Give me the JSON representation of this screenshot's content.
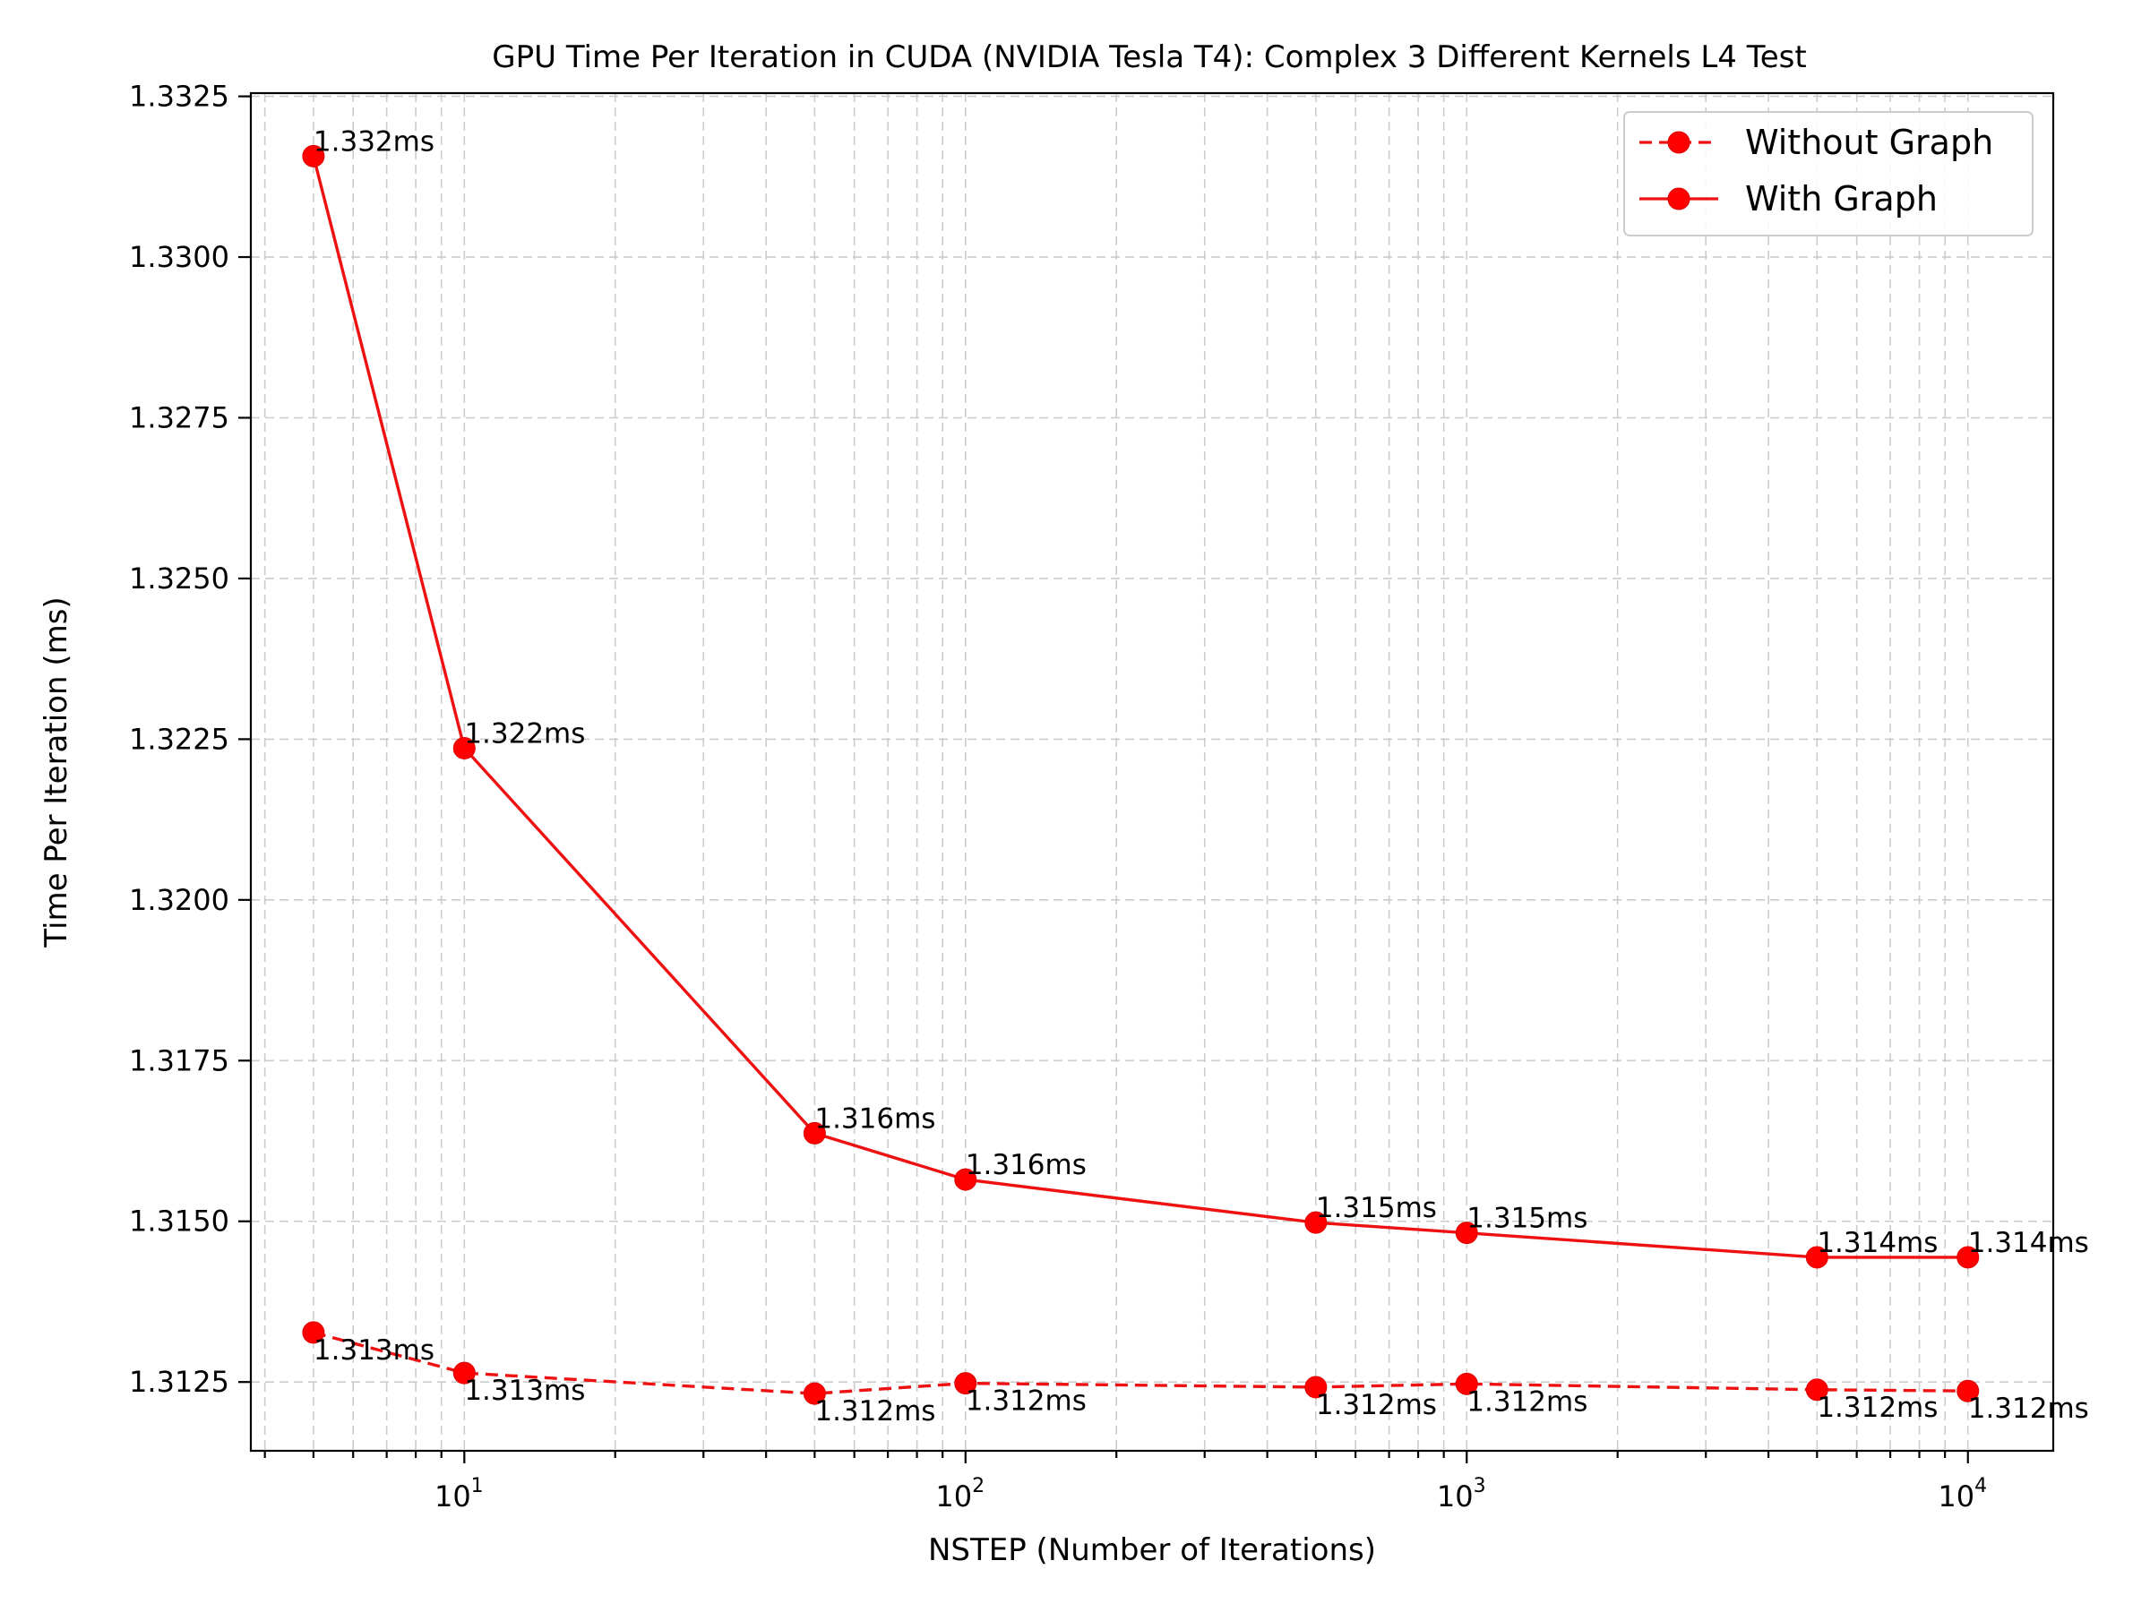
{
  "chart_data": {
    "type": "line",
    "title": "GPU Time Per Iteration in CUDA (NVIDIA Tesla T4): Complex 3 Different Kernels L4 Test",
    "xlabel": "NSTEP (Number of Iterations)",
    "ylabel": "Time Per Iteration (ms)",
    "xscale": "log",
    "xlim": [
      3.75,
      14800
    ],
    "ylim": [
      1.31143,
      1.33255
    ],
    "x": [
      5,
      10,
      50,
      100,
      500,
      1000,
      5000,
      10000
    ],
    "x_ticks": [
      {
        "base": "10",
        "exp": "1",
        "value": 10
      },
      {
        "base": "10",
        "exp": "2",
        "value": 100
      },
      {
        "base": "10",
        "exp": "3",
        "value": 1000
      },
      {
        "base": "10",
        "exp": "4",
        "value": 10000
      }
    ],
    "y_ticks": [
      {
        "label": "1.3125",
        "value": 1.3125
      },
      {
        "label": "1.3150",
        "value": 1.315
      },
      {
        "label": "1.3175",
        "value": 1.3175
      },
      {
        "label": "1.3200",
        "value": 1.32
      },
      {
        "label": "1.3225",
        "value": 1.3225
      },
      {
        "label": "1.3250",
        "value": 1.325
      },
      {
        "label": "1.3275",
        "value": 1.3275
      },
      {
        "label": "1.3300",
        "value": 1.33
      },
      {
        "label": "1.3325",
        "value": 1.3325
      }
    ],
    "grid": true,
    "legend_position": "top-right",
    "series": [
      {
        "name": "Without Graph",
        "style": "dashed",
        "color": "#ff0000",
        "values": [
          1.31327,
          1.31264,
          1.31232,
          1.31248,
          1.31242,
          1.31247,
          1.31238,
          1.31236
        ],
        "labels": [
          "1.313ms",
          "1.313ms",
          "1.312ms",
          "1.312ms",
          "1.312ms",
          "1.312ms",
          "1.312ms",
          "1.312ms"
        ]
      },
      {
        "name": "With Graph",
        "style": "solid",
        "color": "#ff0000",
        "values": [
          1.33157,
          1.32236,
          1.31637,
          1.31565,
          1.31498,
          1.31482,
          1.31444,
          1.31444
        ],
        "labels": [
          "1.332ms",
          "1.322ms",
          "1.316ms",
          "1.316ms",
          "1.315ms",
          "1.315ms",
          "1.314ms",
          "1.314ms"
        ]
      }
    ]
  }
}
